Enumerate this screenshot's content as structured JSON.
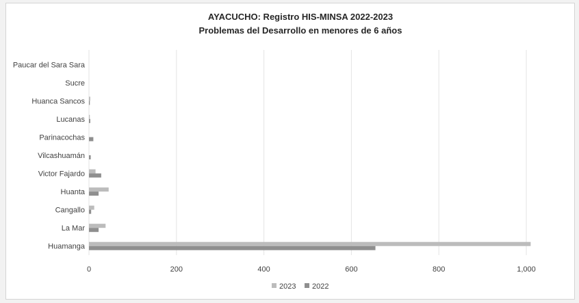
{
  "chart_data": {
    "type": "bar",
    "orientation": "horizontal",
    "title": "AYACUCHO: Registro HIS-MINSA 2022-2023",
    "subtitle": "Problemas del Desarrollo en menores de 6 años",
    "categories": [
      "Paucar del Sara Sara",
      "Sucre",
      "Huanca Sancos",
      "Lucanas",
      "Parinacochas",
      "Vilcashuamán",
      "Victor Fajardo",
      "Huanta",
      "Cangallo",
      "La Mar",
      "Huamanga"
    ],
    "series": [
      {
        "name": "2023",
        "color": "#bcbcbc",
        "values": [
          0,
          0,
          3,
          2,
          0,
          0,
          15,
          45,
          12,
          38,
          1010
        ]
      },
      {
        "name": "2022",
        "color": "#8f8f8f",
        "values": [
          0,
          0,
          2,
          3,
          10,
          4,
          28,
          22,
          5,
          22,
          655
        ]
      }
    ],
    "x_ticks": [
      "0",
      "200",
      "400",
      "600",
      "800",
      "1,000"
    ],
    "xlim": [
      0,
      1000
    ],
    "grid": "vertical",
    "legend": "bottom"
  }
}
